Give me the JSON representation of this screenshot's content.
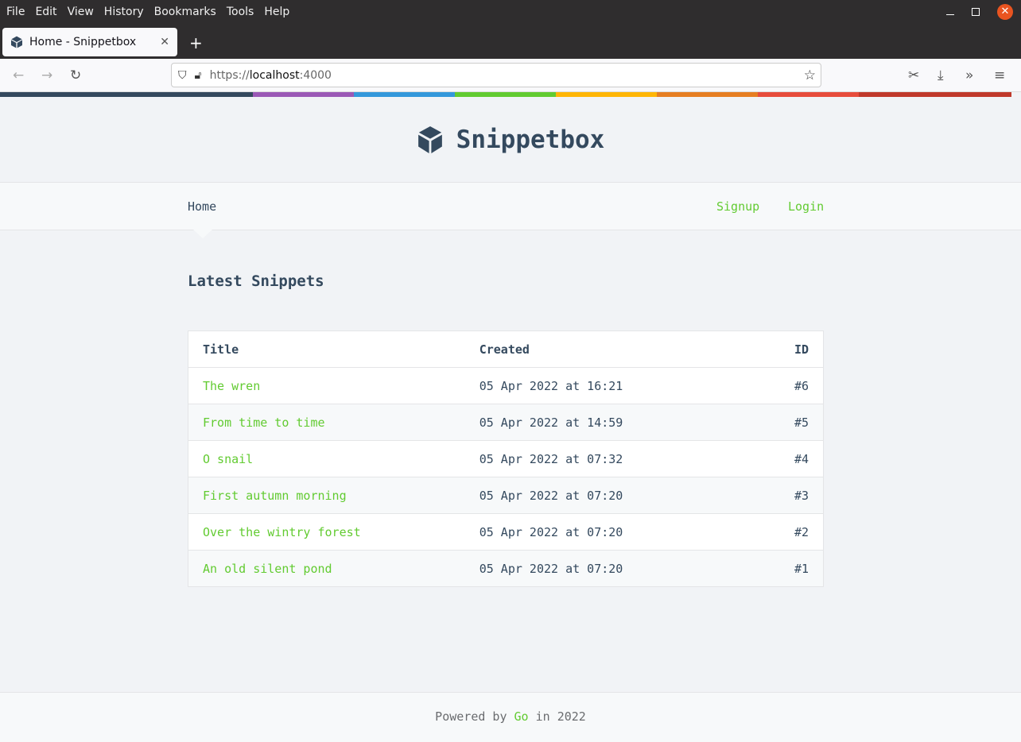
{
  "browser": {
    "menu": [
      "File",
      "Edit",
      "View",
      "History",
      "Bookmarks",
      "Tools",
      "Help"
    ],
    "tab_title": "Home - Snippetbox",
    "url_scheme": "https://",
    "url_host": "localhost",
    "url_port": ":4000"
  },
  "colors": {
    "accent": "#62cb31",
    "text": "#34495e",
    "bar": [
      "#34495e",
      "#9b59b6",
      "#3498db",
      "#62cb31",
      "#ffb606",
      "#e67e22",
      "#e74c3c",
      "#c0392b"
    ]
  },
  "site": {
    "title": "Snippetbox"
  },
  "nav": {
    "home": "Home",
    "signup": "Signup",
    "login": "Login"
  },
  "main": {
    "heading": "Latest Snippets",
    "columns": [
      "Title",
      "Created",
      "ID"
    ],
    "rows": [
      {
        "title": "The wren",
        "created": "05 Apr 2022 at 16:21",
        "id": "#6"
      },
      {
        "title": "From time to time",
        "created": "05 Apr 2022 at 14:59",
        "id": "#5"
      },
      {
        "title": "O snail",
        "created": "05 Apr 2022 at 07:32",
        "id": "#4"
      },
      {
        "title": "First autumn morning",
        "created": "05 Apr 2022 at 07:20",
        "id": "#3"
      },
      {
        "title": "Over the wintry forest",
        "created": "05 Apr 2022 at 07:20",
        "id": "#2"
      },
      {
        "title": "An old silent pond",
        "created": "05 Apr 2022 at 07:20",
        "id": "#1"
      }
    ]
  },
  "footer": {
    "prefix": "Powered by",
    "link": "Go",
    "suffix": "in 2022"
  }
}
